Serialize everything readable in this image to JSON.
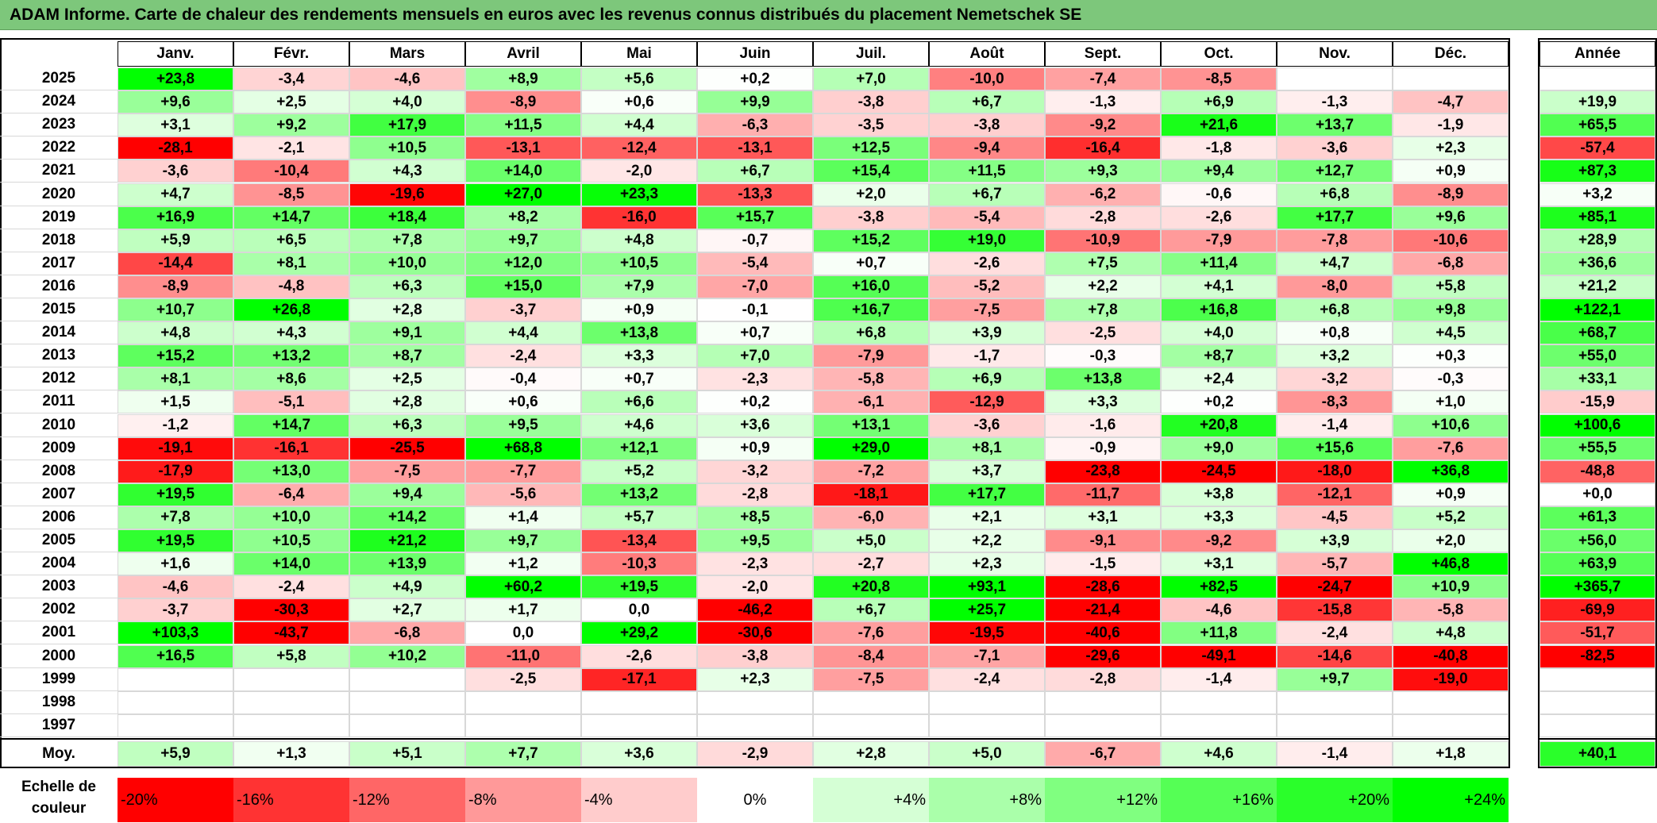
{
  "title": "ADAM Informe. Carte de chaleur des rendements mensuels en euros avec les revenus connus distribués du placement Nemetschek SE",
  "chart_data": {
    "type": "heatmap",
    "columns": [
      "Janv.",
      "Févr.",
      "Mars",
      "Avril",
      "Mai",
      "Juin",
      "Juil.",
      "Août",
      "Sept.",
      "Oct.",
      "Nov.",
      "Déc."
    ],
    "year_label": "Année",
    "avg_label": "Moy.",
    "scale_label": "Echelle de couleur",
    "rows": [
      {
        "year": "2025",
        "months": [
          "+23,8",
          "-3,4",
          "-4,6",
          "+8,9",
          "+5,6",
          "+0,2",
          "+7,0",
          "-10,0",
          "-7,4",
          "-8,5",
          "",
          ""
        ],
        "annual": ""
      },
      {
        "year": "2024",
        "months": [
          "+9,6",
          "+2,5",
          "+4,0",
          "-8,9",
          "+0,6",
          "+9,9",
          "-3,8",
          "+6,7",
          "-1,3",
          "+6,9",
          "-1,3",
          "-4,7"
        ],
        "annual": "+19,9"
      },
      {
        "year": "2023",
        "months": [
          "+3,1",
          "+9,2",
          "+17,9",
          "+11,5",
          "+4,4",
          "-6,3",
          "-3,5",
          "-3,8",
          "-9,2",
          "+21,6",
          "+13,7",
          "-1,9"
        ],
        "annual": "+65,5"
      },
      {
        "year": "2022",
        "months": [
          "-28,1",
          "-2,1",
          "+10,5",
          "-13,1",
          "-12,4",
          "-13,1",
          "+12,5",
          "-9,4",
          "-16,4",
          "-1,8",
          "-3,6",
          "+2,3"
        ],
        "annual": "-57,4"
      },
      {
        "year": "2021",
        "months": [
          "-3,6",
          "-10,4",
          "+4,3",
          "+14,0",
          "-2,0",
          "+6,7",
          "+15,4",
          "+11,5",
          "+9,3",
          "+9,4",
          "+12,7",
          "+0,9"
        ],
        "annual": "+87,3"
      },
      {
        "year": "2020",
        "months": [
          "+4,7",
          "-8,5",
          "-19,6",
          "+27,0",
          "+23,3",
          "-13,3",
          "+2,0",
          "+6,7",
          "-6,2",
          "-0,6",
          "+6,8",
          "-8,9"
        ],
        "annual": "+3,2"
      },
      {
        "year": "2019",
        "months": [
          "+16,9",
          "+14,7",
          "+18,4",
          "+8,2",
          "-16,0",
          "+15,7",
          "-3,8",
          "-5,4",
          "-2,8",
          "-2,6",
          "+17,7",
          "+9,6"
        ],
        "annual": "+85,1"
      },
      {
        "year": "2018",
        "months": [
          "+5,9",
          "+6,5",
          "+7,8",
          "+9,7",
          "+4,8",
          "-0,7",
          "+15,2",
          "+19,0",
          "-10,9",
          "-7,9",
          "-7,8",
          "-10,6"
        ],
        "annual": "+28,9"
      },
      {
        "year": "2017",
        "months": [
          "-14,4",
          "+8,1",
          "+10,0",
          "+12,0",
          "+10,5",
          "-5,4",
          "+0,7",
          "-2,6",
          "+7,5",
          "+11,4",
          "+4,7",
          "-6,8"
        ],
        "annual": "+36,6"
      },
      {
        "year": "2016",
        "months": [
          "-8,9",
          "-4,8",
          "+6,3",
          "+15,0",
          "+7,9",
          "-7,0",
          "+16,0",
          "-5,2",
          "+2,2",
          "+4,1",
          "-8,0",
          "+5,8"
        ],
        "annual": "+21,2"
      },
      {
        "year": "2015",
        "months": [
          "+10,7",
          "+26,8",
          "+2,8",
          "-3,7",
          "+0,9",
          "-0,1",
          "+16,7",
          "-7,5",
          "+7,8",
          "+16,8",
          "+6,8",
          "+9,8"
        ],
        "annual": "+122,1"
      },
      {
        "year": "2014",
        "months": [
          "+4,8",
          "+4,3",
          "+9,1",
          "+4,4",
          "+13,8",
          "+0,7",
          "+6,8",
          "+3,9",
          "-2,5",
          "+4,0",
          "+0,8",
          "+4,5"
        ],
        "annual": "+68,7"
      },
      {
        "year": "2013",
        "months": [
          "+15,2",
          "+13,2",
          "+8,7",
          "-2,4",
          "+3,3",
          "+7,0",
          "-7,9",
          "-1,7",
          "-0,3",
          "+8,7",
          "+3,2",
          "+0,3"
        ],
        "annual": "+55,0"
      },
      {
        "year": "2012",
        "months": [
          "+8,1",
          "+8,6",
          "+2,5",
          "-0,4",
          "+0,7",
          "-2,3",
          "-5,8",
          "+6,9",
          "+13,8",
          "+2,4",
          "-3,2",
          "-0,3"
        ],
        "annual": "+33,1"
      },
      {
        "year": "2011",
        "months": [
          "+1,5",
          "-5,1",
          "+2,8",
          "+0,6",
          "+6,6",
          "+0,2",
          "-6,1",
          "-12,9",
          "+3,3",
          "+0,2",
          "-8,3",
          "+1,0"
        ],
        "annual": "-15,9"
      },
      {
        "year": "2010",
        "months": [
          "-1,2",
          "+14,7",
          "+6,3",
          "+9,5",
          "+4,6",
          "+3,6",
          "+13,1",
          "-3,6",
          "-1,6",
          "+20,8",
          "-1,4",
          "+10,6"
        ],
        "annual": "+100,6"
      },
      {
        "year": "2009",
        "months": [
          "-19,1",
          "-16,1",
          "-25,5",
          "+68,8",
          "+12,1",
          "+0,9",
          "+29,0",
          "+8,1",
          "-0,9",
          "+9,0",
          "+15,6",
          "-7,6"
        ],
        "annual": "+55,5"
      },
      {
        "year": "2008",
        "months": [
          "-17,9",
          "+13,0",
          "-7,5",
          "-7,7",
          "+5,2",
          "-3,2",
          "-7,2",
          "+3,7",
          "-23,8",
          "-24,5",
          "-18,0",
          "+36,8"
        ],
        "annual": "-48,8"
      },
      {
        "year": "2007",
        "months": [
          "+19,5",
          "-6,4",
          "+9,4",
          "-5,6",
          "+13,2",
          "-2,8",
          "-18,1",
          "+17,7",
          "-11,7",
          "+3,8",
          "-12,1",
          "+0,9"
        ],
        "annual": "+0,0"
      },
      {
        "year": "2006",
        "months": [
          "+7,8",
          "+10,0",
          "+14,2",
          "+1,4",
          "+5,7",
          "+8,5",
          "-6,0",
          "+2,1",
          "+3,1",
          "+3,3",
          "-4,5",
          "+5,2"
        ],
        "annual": "+61,3"
      },
      {
        "year": "2005",
        "months": [
          "+19,5",
          "+10,5",
          "+21,2",
          "+9,7",
          "-13,4",
          "+9,5",
          "+5,0",
          "+2,2",
          "-9,1",
          "-9,2",
          "+3,9",
          "+2,0"
        ],
        "annual": "+56,0"
      },
      {
        "year": "2004",
        "months": [
          "+1,6",
          "+14,0",
          "+13,9",
          "+1,2",
          "-10,3",
          "-2,3",
          "-2,7",
          "+2,3",
          "-1,5",
          "+3,1",
          "-5,7",
          "+46,8"
        ],
        "annual": "+63,9"
      },
      {
        "year": "2003",
        "months": [
          "-4,6",
          "-2,4",
          "+4,9",
          "+60,2",
          "+19,5",
          "-2,0",
          "+20,8",
          "+93,1",
          "-28,6",
          "+82,5",
          "-24,7",
          "+10,9"
        ],
        "annual": "+365,7"
      },
      {
        "year": "2002",
        "months": [
          "-3,7",
          "-30,3",
          "+2,7",
          "+1,7",
          "0,0",
          "-46,2",
          "+6,7",
          "+25,7",
          "-21,4",
          "-4,6",
          "-15,8",
          "-5,8"
        ],
        "annual": "-69,9"
      },
      {
        "year": "2001",
        "months": [
          "+103,3",
          "-43,7",
          "-6,8",
          "0,0",
          "+29,2",
          "-30,6",
          "-7,6",
          "-19,5",
          "-40,6",
          "+11,8",
          "-2,4",
          "+4,8"
        ],
        "annual": "-51,7"
      },
      {
        "year": "2000",
        "months": [
          "+16,5",
          "+5,8",
          "+10,2",
          "-11,0",
          "-2,6",
          "-3,8",
          "-8,4",
          "-7,1",
          "-29,6",
          "-49,1",
          "-14,6",
          "-40,8"
        ],
        "annual": "-82,5"
      },
      {
        "year": "1999",
        "months": [
          "",
          "",
          "",
          "-2,5",
          "-17,1",
          "+2,3",
          "-7,5",
          "-2,4",
          "-2,8",
          "-1,4",
          "+9,7",
          "-19,0"
        ],
        "annual": ""
      },
      {
        "year": "1998",
        "months": [
          "",
          "",
          "",
          "",
          "",
          "",
          "",
          "",
          "",
          "",
          "",
          ""
        ],
        "annual": ""
      },
      {
        "year": "1997",
        "months": [
          "",
          "",
          "",
          "",
          "",
          "",
          "",
          "",
          "",
          "",
          "",
          ""
        ],
        "annual": ""
      }
    ],
    "averages": [
      "+5,9",
      "+1,3",
      "+5,1",
      "+7,7",
      "+3,6",
      "-2,9",
      "+2,8",
      "+5,0",
      "-6,7",
      "+4,6",
      "-1,4",
      "+1,8"
    ],
    "avg_annual": "+40,1",
    "scale": [
      {
        "label": "-20%",
        "value": -20
      },
      {
        "label": "-16%",
        "value": -16
      },
      {
        "label": "-12%",
        "value": -12
      },
      {
        "label": "-8%",
        "value": -8
      },
      {
        "label": "-4%",
        "value": -4
      },
      {
        "label": "0%",
        "value": 0
      },
      {
        "label": "+4%",
        "value": 4
      },
      {
        "label": "+8%",
        "value": 8
      },
      {
        "label": "+12%",
        "value": 12
      },
      {
        "label": "+16%",
        "value": 16
      },
      {
        "label": "+20%",
        "value": 20
      },
      {
        "label": "+24%",
        "value": 24
      }
    ],
    "color_scale": {
      "negative": "#ff0000",
      "zero": "#ffffff",
      "positive": "#00ff00",
      "clip_neg": -20,
      "clip_pos": 24
    }
  }
}
